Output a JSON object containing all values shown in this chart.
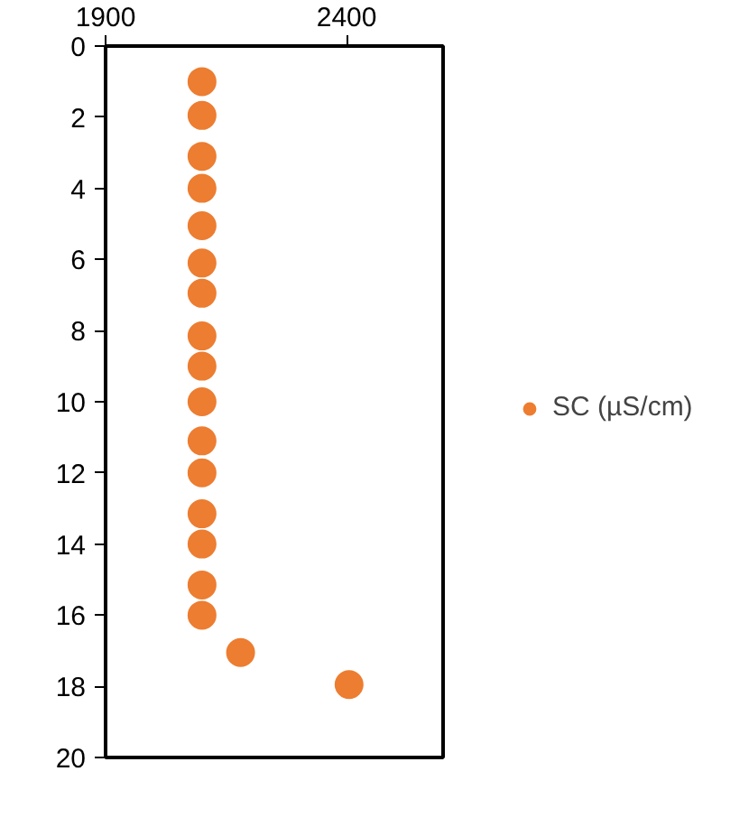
{
  "chart_data": {
    "type": "scatter",
    "x": [
      2100,
      2100,
      2100,
      2100,
      2100,
      2100,
      2100,
      2100,
      2100,
      2100,
      2100,
      2100,
      2100,
      2100,
      2100,
      2100,
      2180,
      2405
    ],
    "series": [
      {
        "name": "SC (µS/cm)",
        "color": "#ed7d31",
        "values": [
          1.0,
          1.95,
          3.1,
          4.0,
          5.05,
          6.1,
          6.95,
          8.15,
          9.0,
          10.0,
          11.1,
          12.0,
          13.15,
          14.0,
          15.15,
          16.0,
          17.05,
          17.95
        ]
      }
    ],
    "xlim": [
      1900,
      2600
    ],
    "xticks": [
      1900,
      2400
    ],
    "ylim": [
      20,
      0
    ],
    "yticks": [
      0,
      2,
      4,
      6,
      8,
      10,
      12,
      14,
      16,
      18,
      20
    ],
    "grid": false,
    "legend": "right",
    "marker": "circle"
  }
}
